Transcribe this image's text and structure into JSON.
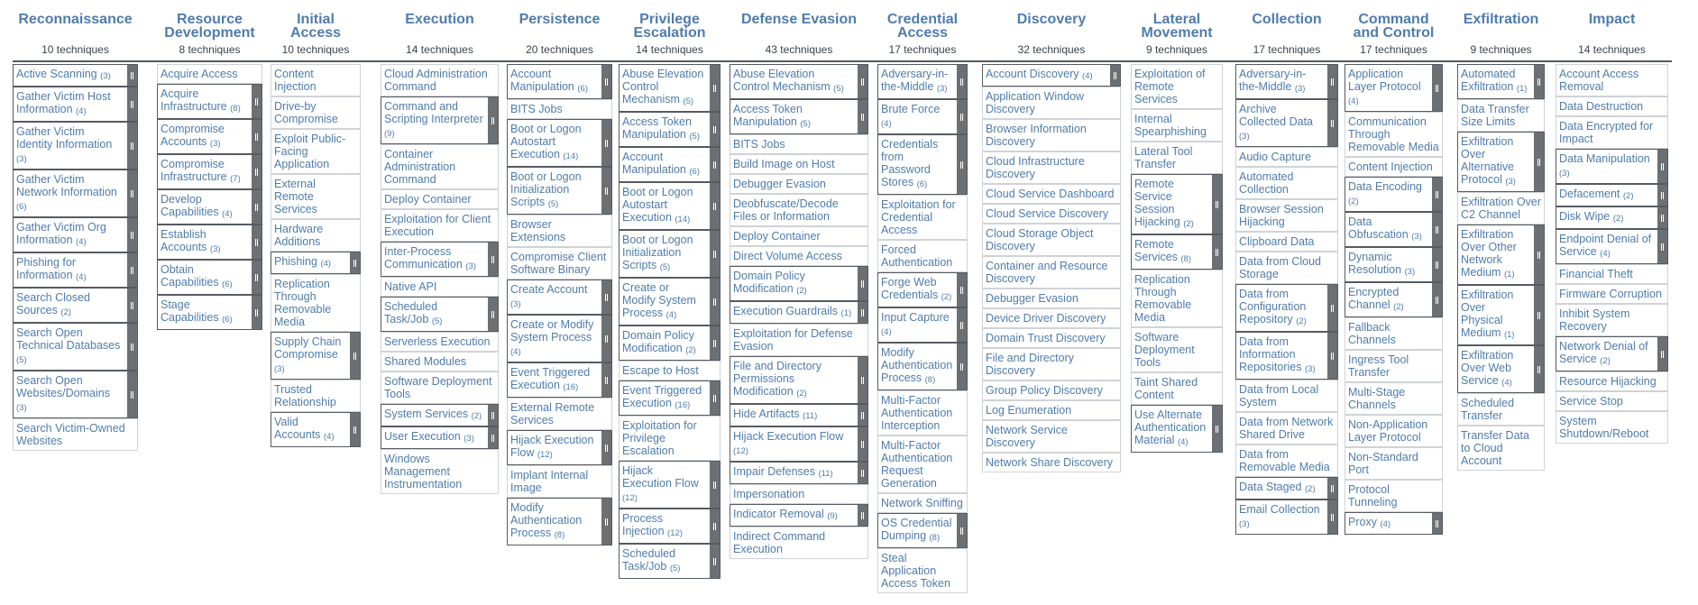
{
  "tactics": [
    {
      "name": "Reconnaissance",
      "count": "10 techniques",
      "techniques": [
        {
          "name": "Active Scanning",
          "sub": "(3)"
        },
        {
          "name": "Gather Victim Host Information",
          "sub": "(4)"
        },
        {
          "name": "Gather Victim Identity Information",
          "sub": "(3)"
        },
        {
          "name": "Gather Victim Network Information",
          "sub": "(6)"
        },
        {
          "name": "Gather Victim Org Information",
          "sub": "(4)"
        },
        {
          "name": "Phishing for Information",
          "sub": "(4)"
        },
        {
          "name": "Search Closed Sources",
          "sub": "(2)"
        },
        {
          "name": "Search Open Technical Databases",
          "sub": "(5)"
        },
        {
          "name": "Search Open Websites/Domains",
          "sub": "(3)"
        },
        {
          "name": "Search Victim-Owned Websites",
          "sub": ""
        }
      ]
    },
    {
      "name": "Resource Development",
      "count": "8 techniques",
      "techniques": [
        {
          "name": "Acquire Access",
          "sub": ""
        },
        {
          "name": "Acquire Infrastructure",
          "sub": "(8)"
        },
        {
          "name": "Compromise Accounts",
          "sub": "(3)"
        },
        {
          "name": "Compromise Infrastructure",
          "sub": "(7)"
        },
        {
          "name": "Develop Capabilities",
          "sub": "(4)"
        },
        {
          "name": "Establish Accounts",
          "sub": "(3)"
        },
        {
          "name": "Obtain Capabilities",
          "sub": "(6)"
        },
        {
          "name": "Stage Capabilities",
          "sub": "(6)"
        }
      ]
    },
    {
      "name": "Initial Access",
      "count": "10 techniques",
      "techniques": [
        {
          "name": "Content Injection",
          "sub": ""
        },
        {
          "name": "Drive-by Compromise",
          "sub": ""
        },
        {
          "name": "Exploit Public-Facing Application",
          "sub": ""
        },
        {
          "name": "External Remote Services",
          "sub": ""
        },
        {
          "name": "Hardware Additions",
          "sub": ""
        },
        {
          "name": "Phishing",
          "sub": "(4)"
        },
        {
          "name": "Replication Through Removable Media",
          "sub": ""
        },
        {
          "name": "Supply Chain Compromise",
          "sub": "(3)"
        },
        {
          "name": "Trusted Relationship",
          "sub": ""
        },
        {
          "name": "Valid Accounts",
          "sub": "(4)"
        }
      ]
    },
    {
      "name": "Execution",
      "count": "14 techniques",
      "techniques": [
        {
          "name": "Cloud Administration Command",
          "sub": ""
        },
        {
          "name": "Command and Scripting Interpreter",
          "sub": "(9)"
        },
        {
          "name": "Container Administration Command",
          "sub": ""
        },
        {
          "name": "Deploy Container",
          "sub": ""
        },
        {
          "name": "Exploitation for Client Execution",
          "sub": ""
        },
        {
          "name": "Inter-Process Communication",
          "sub": "(3)"
        },
        {
          "name": "Native API",
          "sub": ""
        },
        {
          "name": "Scheduled Task/Job",
          "sub": "(5)"
        },
        {
          "name": "Serverless Execution",
          "sub": ""
        },
        {
          "name": "Shared Modules",
          "sub": ""
        },
        {
          "name": "Software Deployment Tools",
          "sub": ""
        },
        {
          "name": "System Services",
          "sub": "(2)"
        },
        {
          "name": "User Execution",
          "sub": "(3)"
        },
        {
          "name": "Windows Management Instrumentation",
          "sub": ""
        }
      ]
    },
    {
      "name": "Persistence",
      "count": "20 techniques",
      "techniques": [
        {
          "name": "Account Manipulation",
          "sub": "(6)"
        },
        {
          "name": "BITS Jobs",
          "sub": ""
        },
        {
          "name": "Boot or Logon Autostart Execution",
          "sub": "(14)"
        },
        {
          "name": "Boot or Logon Initialization Scripts",
          "sub": "(5)"
        },
        {
          "name": "Browser Extensions",
          "sub": ""
        },
        {
          "name": "Compromise Client Software Binary",
          "sub": ""
        },
        {
          "name": "Create Account",
          "sub": "(3)"
        },
        {
          "name": "Create or Modify System Process",
          "sub": "(4)"
        },
        {
          "name": "Event Triggered Execution",
          "sub": "(16)"
        },
        {
          "name": "External Remote Services",
          "sub": ""
        },
        {
          "name": "Hijack Execution Flow",
          "sub": "(12)"
        },
        {
          "name": "Implant Internal Image",
          "sub": ""
        },
        {
          "name": "Modify Authentication Process",
          "sub": "(8)"
        }
      ]
    },
    {
      "name": "Privilege Escalation",
      "count": "14 techniques",
      "techniques": [
        {
          "name": "Abuse Elevation Control Mechanism",
          "sub": "(5)"
        },
        {
          "name": "Access Token Manipulation",
          "sub": "(5)"
        },
        {
          "name": "Account Manipulation",
          "sub": "(6)"
        },
        {
          "name": "Boot or Logon Autostart Execution",
          "sub": "(14)"
        },
        {
          "name": "Boot or Logon Initialization Scripts",
          "sub": "(5)"
        },
        {
          "name": "Create or Modify System Process",
          "sub": "(4)"
        },
        {
          "name": "Domain Policy Modification",
          "sub": "(2)"
        },
        {
          "name": "Escape to Host",
          "sub": ""
        },
        {
          "name": "Event Triggered Execution",
          "sub": "(16)"
        },
        {
          "name": "Exploitation for Privilege Escalation",
          "sub": ""
        },
        {
          "name": "Hijack Execution Flow",
          "sub": "(12)"
        },
        {
          "name": "Process Injection",
          "sub": "(12)"
        },
        {
          "name": "Scheduled Task/Job",
          "sub": "(5)"
        }
      ]
    },
    {
      "name": "Defense Evasion",
      "count": "43 techniques",
      "techniques": [
        {
          "name": "Abuse Elevation Control Mechanism",
          "sub": "(5)"
        },
        {
          "name": "Access Token Manipulation",
          "sub": "(5)"
        },
        {
          "name": "BITS Jobs",
          "sub": ""
        },
        {
          "name": "Build Image on Host",
          "sub": ""
        },
        {
          "name": "Debugger Evasion",
          "sub": ""
        },
        {
          "name": "Deobfuscate/Decode Files or Information",
          "sub": ""
        },
        {
          "name": "Deploy Container",
          "sub": ""
        },
        {
          "name": "Direct Volume Access",
          "sub": ""
        },
        {
          "name": "Domain Policy Modification",
          "sub": "(2)"
        },
        {
          "name": "Execution Guardrails",
          "sub": "(1)"
        },
        {
          "name": "Exploitation for Defense Evasion",
          "sub": ""
        },
        {
          "name": "File and Directory Permissions Modification",
          "sub": "(2)"
        },
        {
          "name": "Hide Artifacts",
          "sub": "(11)"
        },
        {
          "name": "Hijack Execution Flow",
          "sub": "(12)"
        },
        {
          "name": "Impair Defenses",
          "sub": "(11)"
        },
        {
          "name": "Impersonation",
          "sub": ""
        },
        {
          "name": "Indicator Removal",
          "sub": "(9)"
        },
        {
          "name": "Indirect Command Execution",
          "sub": ""
        }
      ]
    },
    {
      "name": "Credential Access",
      "count": "17 techniques",
      "techniques": [
        {
          "name": "Adversary-in-the-Middle",
          "sub": "(3)"
        },
        {
          "name": "Brute Force",
          "sub": "(4)"
        },
        {
          "name": "Credentials from Password Stores",
          "sub": "(6)"
        },
        {
          "name": "Exploitation for Credential Access",
          "sub": ""
        },
        {
          "name": "Forced Authentication",
          "sub": ""
        },
        {
          "name": "Forge Web Credentials",
          "sub": "(2)"
        },
        {
          "name": "Input Capture",
          "sub": "(4)"
        },
        {
          "name": "Modify Authentication Process",
          "sub": "(8)"
        },
        {
          "name": "Multi-Factor Authentication Interception",
          "sub": ""
        },
        {
          "name": "Multi-Factor Authentication Request Generation",
          "sub": ""
        },
        {
          "name": "Network Sniffing",
          "sub": ""
        },
        {
          "name": "OS Credential Dumping",
          "sub": "(8)"
        },
        {
          "name": "Steal Application Access Token",
          "sub": ""
        }
      ]
    },
    {
      "name": "Discovery",
      "count": "32 techniques",
      "techniques": [
        {
          "name": "Account Discovery",
          "sub": "(4)"
        },
        {
          "name": "Application Window Discovery",
          "sub": ""
        },
        {
          "name": "Browser Information Discovery",
          "sub": ""
        },
        {
          "name": "Cloud Infrastructure Discovery",
          "sub": ""
        },
        {
          "name": "Cloud Service Dashboard",
          "sub": ""
        },
        {
          "name": "Cloud Service Discovery",
          "sub": ""
        },
        {
          "name": "Cloud Storage Object Discovery",
          "sub": ""
        },
        {
          "name": "Container and Resource Discovery",
          "sub": ""
        },
        {
          "name": "Debugger Evasion",
          "sub": ""
        },
        {
          "name": "Device Driver Discovery",
          "sub": ""
        },
        {
          "name": "Domain Trust Discovery",
          "sub": ""
        },
        {
          "name": "File and Directory Discovery",
          "sub": ""
        },
        {
          "name": "Group Policy Discovery",
          "sub": ""
        },
        {
          "name": "Log Enumeration",
          "sub": ""
        },
        {
          "name": "Network Service Discovery",
          "sub": ""
        },
        {
          "name": "Network Share Discovery",
          "sub": ""
        }
      ]
    },
    {
      "name": "Lateral Movement",
      "count": "9 techniques",
      "techniques": [
        {
          "name": "Exploitation of Remote Services",
          "sub": ""
        },
        {
          "name": "Internal Spearphishing",
          "sub": ""
        },
        {
          "name": "Lateral Tool Transfer",
          "sub": ""
        },
        {
          "name": "Remote Service Session Hijacking",
          "sub": "(2)"
        },
        {
          "name": "Remote Services",
          "sub": "(8)"
        },
        {
          "name": "Replication Through Removable Media",
          "sub": ""
        },
        {
          "name": "Software Deployment Tools",
          "sub": ""
        },
        {
          "name": "Taint Shared Content",
          "sub": ""
        },
        {
          "name": "Use Alternate Authentication Material",
          "sub": "(4)"
        }
      ]
    },
    {
      "name": "Collection",
      "count": "17 techniques",
      "techniques": [
        {
          "name": "Adversary-in-the-Middle",
          "sub": "(3)"
        },
        {
          "name": "Archive Collected Data",
          "sub": "(3)"
        },
        {
          "name": "Audio Capture",
          "sub": ""
        },
        {
          "name": "Automated Collection",
          "sub": ""
        },
        {
          "name": "Browser Session Hijacking",
          "sub": ""
        },
        {
          "name": "Clipboard Data",
          "sub": ""
        },
        {
          "name": "Data from Cloud Storage",
          "sub": ""
        },
        {
          "name": "Data from Configuration Repository",
          "sub": "(2)"
        },
        {
          "name": "Data from Information Repositories",
          "sub": "(3)"
        },
        {
          "name": "Data from Local System",
          "sub": ""
        },
        {
          "name": "Data from Network Shared Drive",
          "sub": ""
        },
        {
          "name": "Data from Removable Media",
          "sub": ""
        },
        {
          "name": "Data Staged",
          "sub": "(2)"
        },
        {
          "name": "Email Collection",
          "sub": "(3)"
        }
      ]
    },
    {
      "name": "Command and Control",
      "count": "17 techniques",
      "techniques": [
        {
          "name": "Application Layer Protocol",
          "sub": "(4)"
        },
        {
          "name": "Communication Through Removable Media",
          "sub": ""
        },
        {
          "name": "Content Injection",
          "sub": ""
        },
        {
          "name": "Data Encoding",
          "sub": "(2)"
        },
        {
          "name": "Data Obfuscation",
          "sub": "(3)"
        },
        {
          "name": "Dynamic Resolution",
          "sub": "(3)"
        },
        {
          "name": "Encrypted Channel",
          "sub": "(2)"
        },
        {
          "name": "Fallback Channels",
          "sub": ""
        },
        {
          "name": "Ingress Tool Transfer",
          "sub": ""
        },
        {
          "name": "Multi-Stage Channels",
          "sub": ""
        },
        {
          "name": "Non-Application Layer Protocol",
          "sub": ""
        },
        {
          "name": "Non-Standard Port",
          "sub": ""
        },
        {
          "name": "Protocol Tunneling",
          "sub": ""
        },
        {
          "name": "Proxy",
          "sub": "(4)"
        }
      ]
    },
    {
      "name": "Exfiltration",
      "count": "9 techniques",
      "techniques": [
        {
          "name": "Automated Exfiltration",
          "sub": "(1)"
        },
        {
          "name": "Data Transfer Size Limits",
          "sub": ""
        },
        {
          "name": "Exfiltration Over Alternative Protocol",
          "sub": "(3)"
        },
        {
          "name": "Exfiltration Over C2 Channel",
          "sub": ""
        },
        {
          "name": "Exfiltration Over Other Network Medium",
          "sub": "(1)"
        },
        {
          "name": "Exfiltration Over Physical Medium",
          "sub": "(1)"
        },
        {
          "name": "Exfiltration Over Web Service",
          "sub": "(4)"
        },
        {
          "name": "Scheduled Transfer",
          "sub": ""
        },
        {
          "name": "Transfer Data to Cloud Account",
          "sub": ""
        }
      ]
    },
    {
      "name": "Impact",
      "count": "14 techniques",
      "techniques": [
        {
          "name": "Account Access Removal",
          "sub": ""
        },
        {
          "name": "Data Destruction",
          "sub": ""
        },
        {
          "name": "Data Encrypted for Impact",
          "sub": ""
        },
        {
          "name": "Data Manipulation",
          "sub": "(3)"
        },
        {
          "name": "Defacement",
          "sub": "(2)"
        },
        {
          "name": "Disk Wipe",
          "sub": "(2)"
        },
        {
          "name": "Endpoint Denial of Service",
          "sub": "(4)"
        },
        {
          "name": "Financial Theft",
          "sub": ""
        },
        {
          "name": "Firmware Corruption",
          "sub": ""
        },
        {
          "name": "Inhibit System Recovery",
          "sub": ""
        },
        {
          "name": "Network Denial of Service",
          "sub": "(2)"
        },
        {
          "name": "Resource Hijacking",
          "sub": ""
        },
        {
          "name": "Service Stop",
          "sub": ""
        },
        {
          "name": "System Shutdown/Reboot",
          "sub": ""
        }
      ]
    }
  ]
}
